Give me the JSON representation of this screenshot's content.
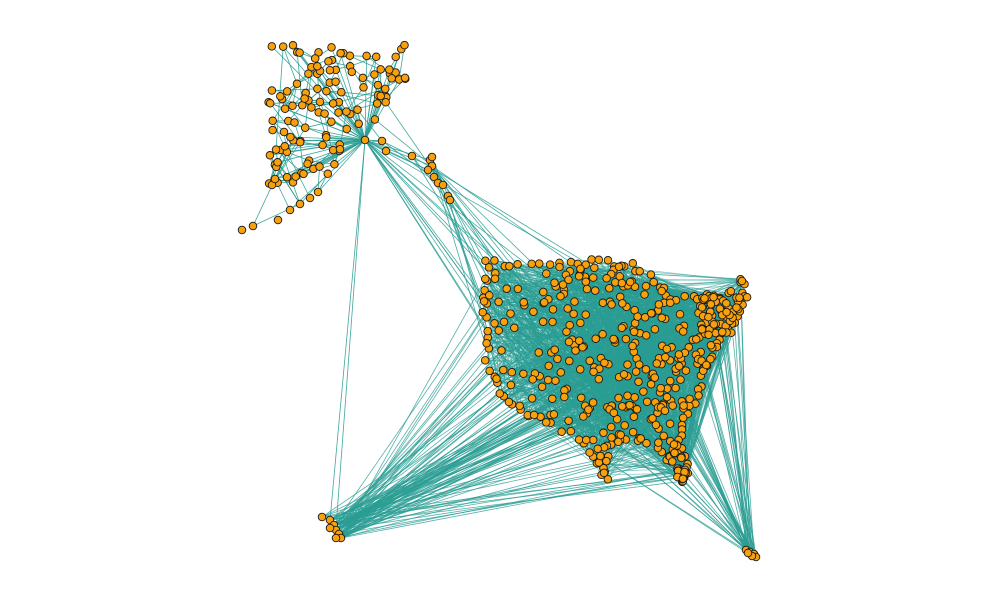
{
  "figure": {
    "edge_color": "#2a9d94",
    "node_fill": "#f8a10d",
    "node_stroke": "#1a1a1a",
    "background": "#ffffff",
    "node_count_approx": 700
  },
  "clusters": [
    {
      "name": "alaska",
      "seed": 7
    },
    {
      "name": "contiguous-us",
      "seed": 11
    },
    {
      "name": "hawaii",
      "seed": 17
    },
    {
      "name": "puerto-rico",
      "seed": 23
    }
  ]
}
